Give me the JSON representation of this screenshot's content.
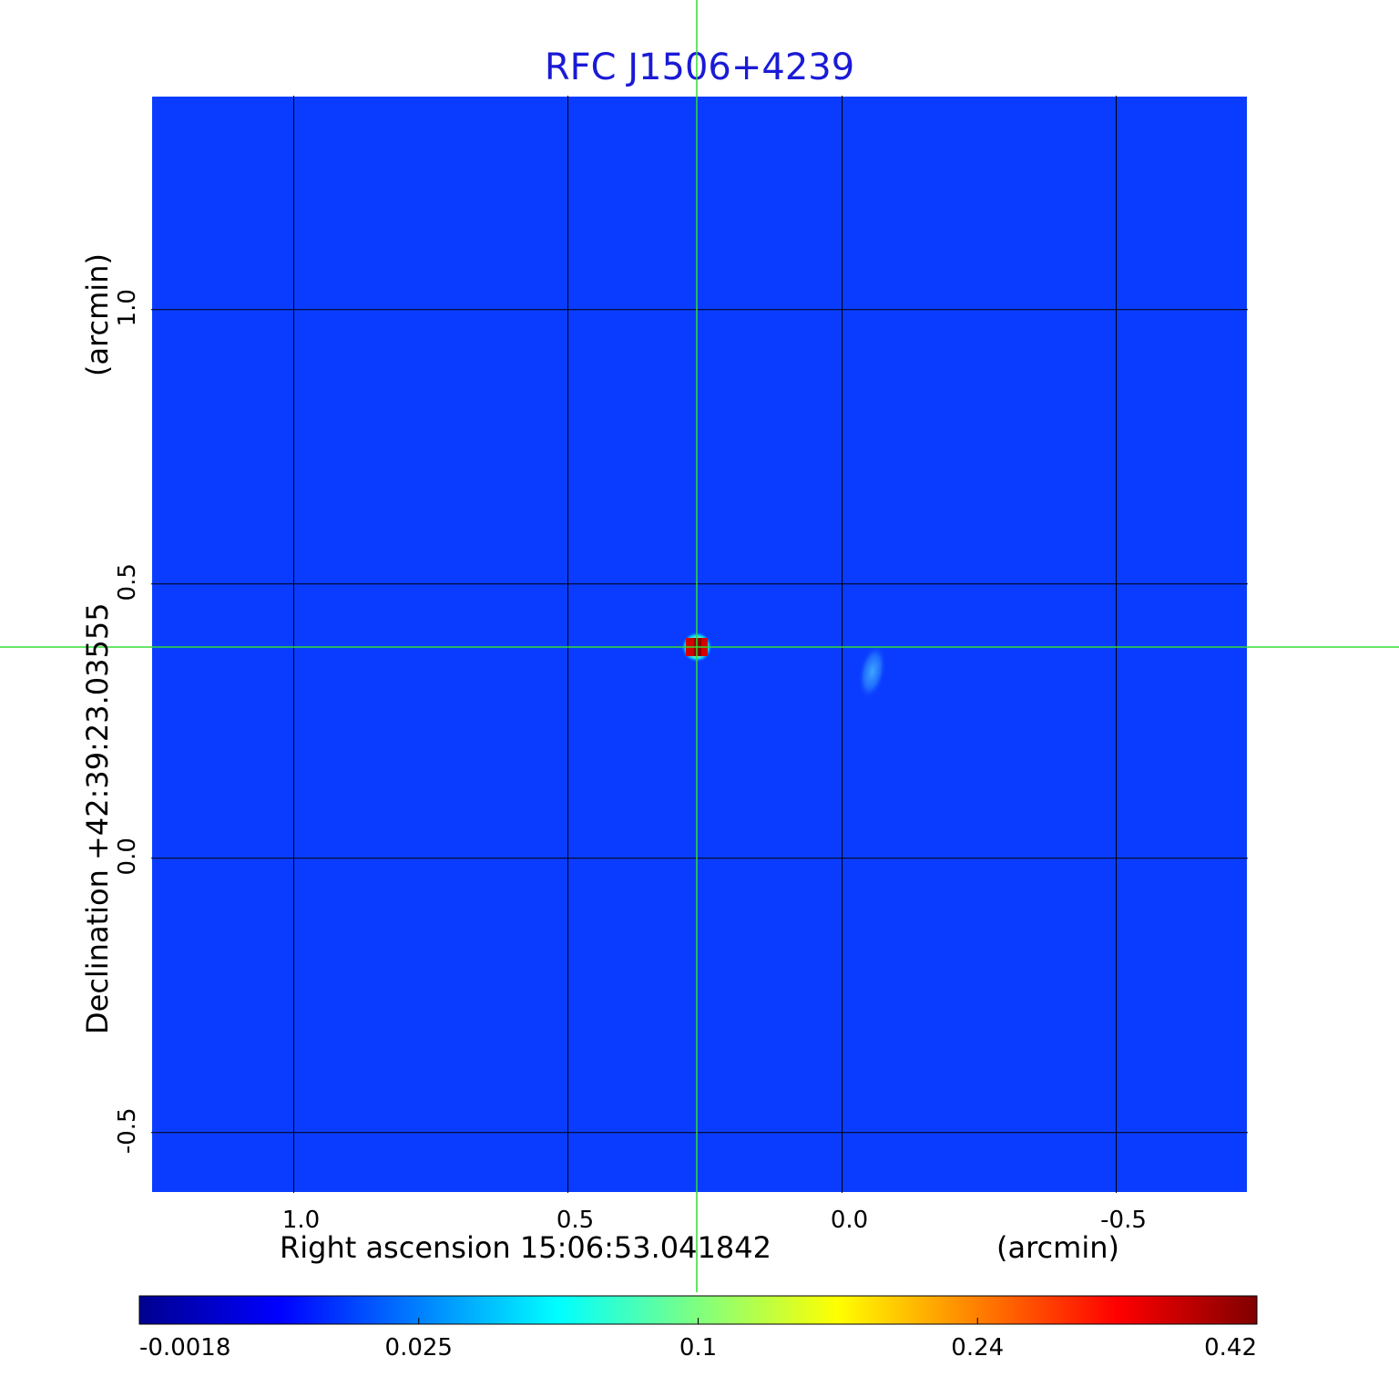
{
  "chart_data": {
    "type": "heatmap",
    "title": "RFC J1506+4239",
    "xlabel": "Right ascension  15:06:53.041842",
    "xunit": "(arcmin)",
    "ylabel": "Declination  +42:39:23.03555",
    "yunit": "(arcmin)",
    "x_ticks": [
      "1.0",
      "0.5",
      "0.0",
      "-0.5"
    ],
    "x_tick_values": [
      1.0,
      0.5,
      0.0,
      -0.5
    ],
    "y_ticks": [
      "1.0",
      "0.5",
      "0.0",
      "-0.5"
    ],
    "y_tick_values": [
      1.0,
      0.5,
      0.0,
      -0.5
    ],
    "xlim": [
      1.26,
      -0.74
    ],
    "ylim": [
      -0.61,
      1.39
    ],
    "grid": true,
    "crosshair": {
      "x": 0.265,
      "y": 0.385
    },
    "sources": [
      {
        "x": 0.265,
        "y": 0.385,
        "peak": 0.42,
        "sigma": 0.028
      },
      {
        "x": -0.055,
        "y": 0.34,
        "peak": 0.055,
        "sigma": 0.03,
        "elongated": true
      }
    ],
    "colorbar": {
      "colormap": "jet",
      "ticks": [
        "-0.0018",
        "0.025",
        "0.1",
        "0.24",
        "0.42"
      ],
      "tick_values": [
        -0.0018,
        0.025,
        0.1,
        0.24,
        0.42
      ],
      "range": [
        -0.0018,
        0.42
      ]
    },
    "colors": {
      "background": "#0a3cff",
      "grid": "#000000",
      "crosshair": "#33dd33",
      "title": "#1a1ad6"
    }
  }
}
